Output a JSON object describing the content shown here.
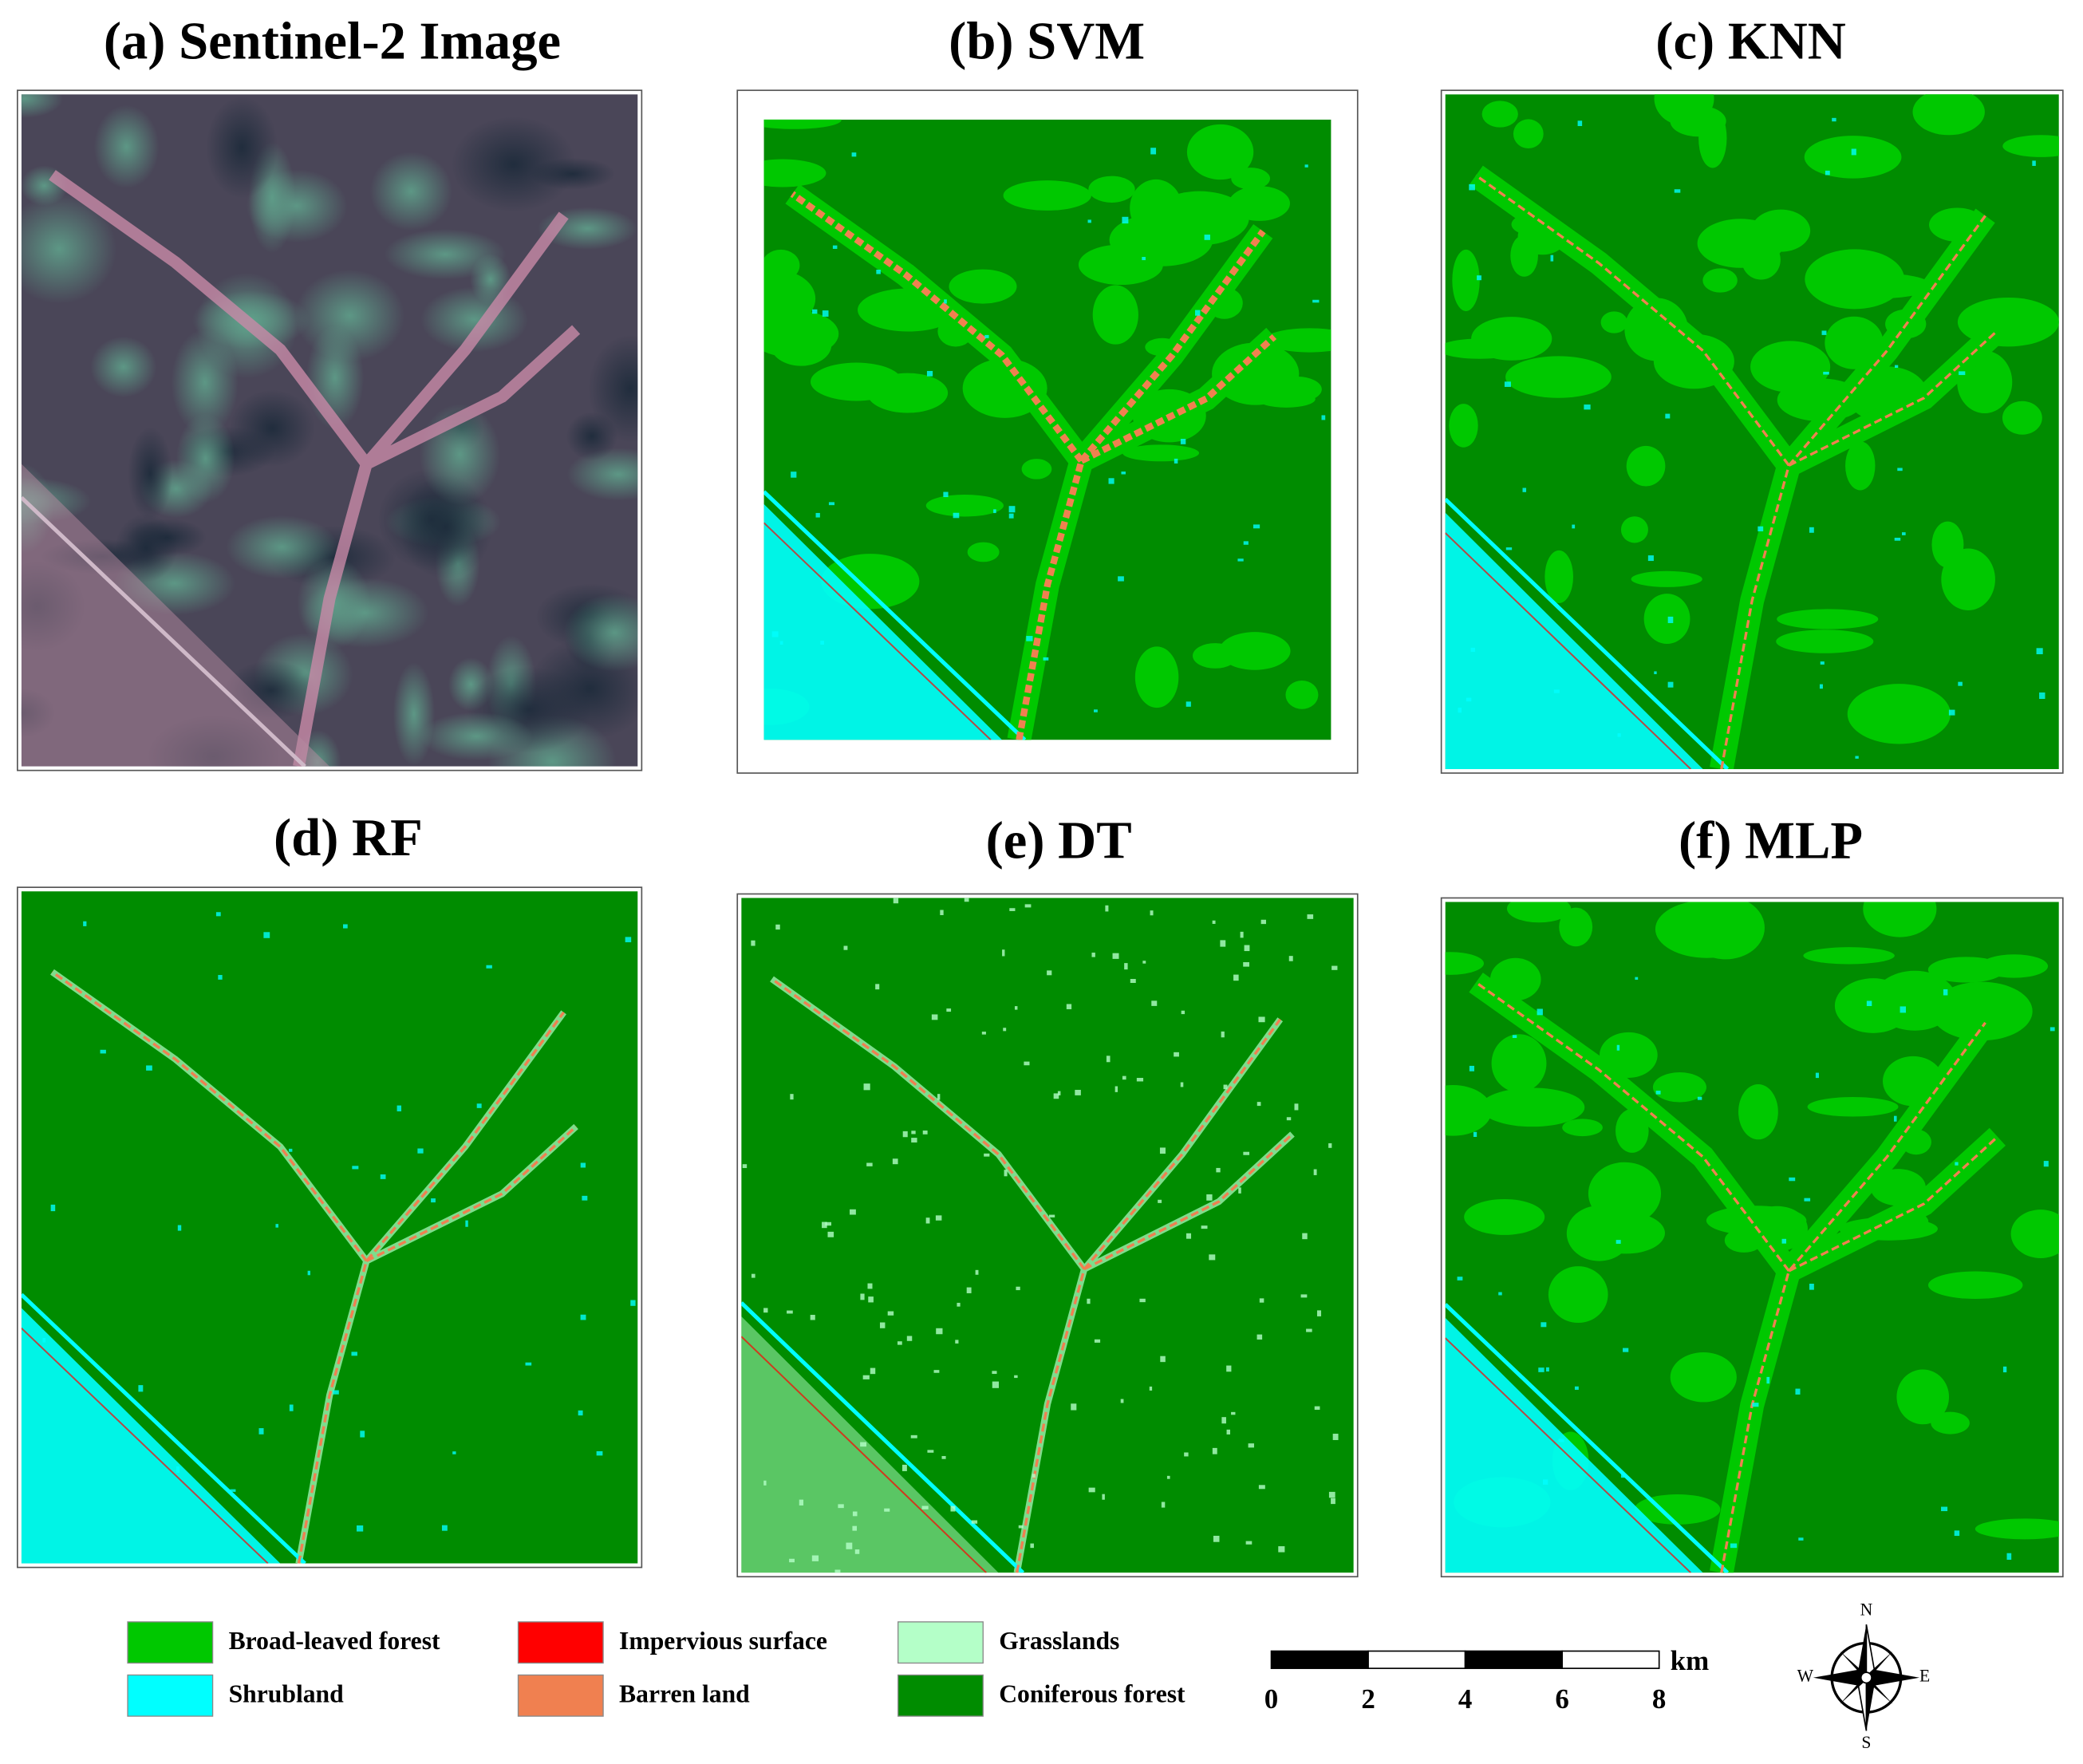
{
  "panels": [
    {
      "title": "(a) Sentinel-2 Image"
    },
    {
      "title": "(b) SVM"
    },
    {
      "title": "(c) KNN"
    },
    {
      "title": "(d) RF"
    },
    {
      "title": "(e) DT"
    },
    {
      "title": "(f) MLP"
    }
  ],
  "legend": [
    {
      "label": "Broad-leaved forest",
      "color": "#00c800"
    },
    {
      "label": "Shrubland",
      "color": "#00ffff"
    },
    {
      "label": "Impervious surface",
      "color": "#ff0000"
    },
    {
      "label": "Barren land",
      "color": "#f08050"
    },
    {
      "label": "Grasslands",
      "color": "#b4ffc8"
    },
    {
      "label": "Coniferous forest",
      "color": "#008c00"
    }
  ],
  "scale_bar": {
    "unit": "km",
    "ticks": [
      0,
      2,
      4,
      6,
      8
    ]
  },
  "compass": {
    "north": "N",
    "east": "E",
    "south": "S",
    "west": "W"
  }
}
